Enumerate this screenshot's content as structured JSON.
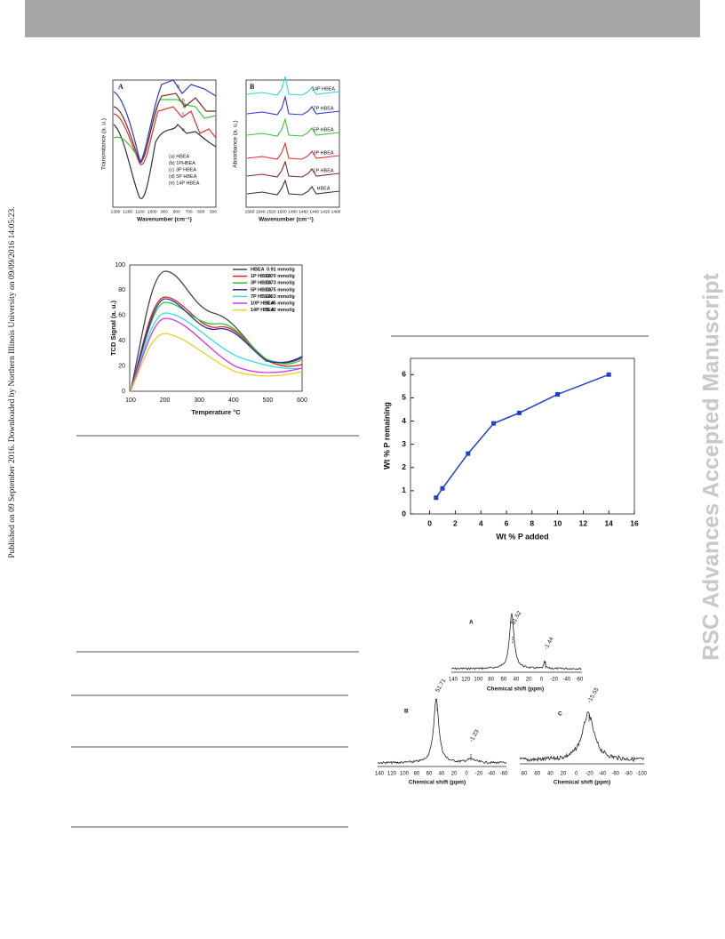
{
  "margin_note": "Published on 09 September 2016. Downloaded by Northern Illinois University on 09/09/2016 14:05:23.",
  "watermark": "RSC Advances Accepted Manuscript",
  "figure_ir": {
    "panel_a": {
      "label": "A",
      "ylabel": "Transmitance (a. u.)",
      "xlabel": "Wavenumber (cm⁻¹)",
      "xticks": [
        "1300",
        "1200",
        "1100",
        "1000",
        "900",
        "800",
        "700",
        "600",
        "500"
      ],
      "legend": [
        "(a) HBEA",
        "(b) 1PHBEA",
        "(c) 3P HBEA",
        "(d) 5P HBEA",
        "(e) 14P HBEA"
      ],
      "curve_letters": [
        "e",
        "b",
        "d",
        "c",
        "a"
      ]
    },
    "panel_b": {
      "label": "B",
      "ylabel": "Absorbance (a. u.)",
      "xlabel": "Wavenumber (cm⁻¹)",
      "xticks": [
        "1560",
        "1540",
        "1520",
        "1500",
        "1480",
        "1460",
        "1440",
        "1420",
        "1400"
      ],
      "curve_labels": [
        "14P HBEA",
        "7P HBEA",
        "5P HBEA",
        "3P HBEA",
        "1P HBEA",
        "HBEA"
      ]
    }
  },
  "figure_tcd": {
    "ylabel": "TCD Signal (a. u.)",
    "xlabel": "Temperature °C",
    "xticks": [
      "100",
      "200",
      "300",
      "400",
      "500",
      "600"
    ],
    "yticks": [
      "0",
      "20",
      "40",
      "60",
      "80",
      "100"
    ],
    "legend": [
      {
        "name": "HBEA",
        "value": "0.91 mmol/g",
        "color": "#444444"
      },
      {
        "name": "1P HBEA",
        "value": "0.70 mmol/g",
        "color": "#e02020"
      },
      {
        "name": "3P HBEA",
        "value": "0.73 mmol/g",
        "color": "#30c030"
      },
      {
        "name": "5P HBEA",
        "value": "0.75 mmol/g",
        "color": "#2a2aa0"
      },
      {
        "name": "7P HBEA",
        "value": "0.53 mmol/g",
        "color": "#30e0e0"
      },
      {
        "name": "10P HBEA",
        "value": "0.45 mmol/g",
        "color": "#e030e0"
      },
      {
        "name": "14P HBEA",
        "value": "0.42 mmol/g",
        "color": "#e8d020"
      }
    ]
  },
  "chart_data": {
    "type": "line",
    "xlabel": "Wt %  P added",
    "ylabel": "Wt %  P remaining",
    "x": [
      0.5,
      1,
      3,
      5,
      7,
      10,
      14
    ],
    "values": [
      0.7,
      1.1,
      2.6,
      3.9,
      4.35,
      5.15,
      6.0
    ],
    "color": "#1f3fd0",
    "xlim": [
      -1.5,
      16
    ],
    "ylim": [
      0,
      6.7
    ],
    "xticks": [
      0,
      2,
      4,
      6,
      8,
      10,
      12,
      14,
      16
    ],
    "yticks": [
      0,
      1,
      2,
      3,
      4,
      5,
      6
    ]
  },
  "figure_nmr": {
    "panel_a": {
      "label": "A",
      "peaks": [
        "51.52",
        "-1.44"
      ],
      "xlabel": "Chemical shift (ppm)",
      "xticks": [
        "140",
        "120",
        "100",
        "80",
        "60",
        "40",
        "20",
        "0",
        "-20",
        "-40",
        "-60"
      ]
    },
    "panel_b": {
      "label": "B",
      "peaks": [
        "51.71",
        "-1.23"
      ],
      "xlabel": "Chemical shift (ppm)",
      "xticks": [
        "140",
        "120",
        "100",
        "80",
        "60",
        "40",
        "20",
        "0",
        "-20",
        "-40",
        "-60"
      ]
    },
    "panel_c": {
      "label": "C",
      "peaks": [
        "-15.55"
      ],
      "xlabel": "Chemical shift (ppm)",
      "xticks": [
        "80",
        "60",
        "40",
        "20",
        "0",
        "-20",
        "-40",
        "-60",
        "-80",
        "-100"
      ]
    }
  }
}
